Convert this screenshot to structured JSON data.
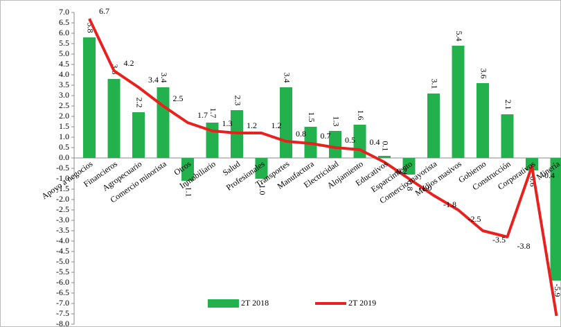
{
  "chart_data": {
    "type": "bar_line",
    "categories": [
      "Apoyo a negocios",
      "Financieros",
      "Agropecuario",
      "Comercio minorista",
      "Otros",
      "Inmobiliario",
      "Salud",
      "Profesionales",
      "Transportes",
      "Manufactura",
      "Electricidad",
      "Alojamiento",
      "Educativos",
      "Esparcimiento",
      "Comercio mayorista",
      "Medios masivos",
      "Gobierno",
      "Construcción",
      "Corporativos",
      "Minería"
    ],
    "series": [
      {
        "name": "2T 2018",
        "type": "bar",
        "color": "#22b14c",
        "values": [
          5.8,
          3.8,
          2.2,
          3.4,
          -1.1,
          1.7,
          2.3,
          -1,
          3.4,
          1.5,
          1.3,
          1.6,
          0.1,
          -0.8,
          3.1,
          5.4,
          3.6,
          2.1,
          -0.6,
          -5.9
        ],
        "value_labels": [
          "5.8",
          "3.8",
          "2.2",
          "3.4",
          "-1.1",
          "1.7",
          "2.3",
          "-1.0",
          "3.4",
          "1.5",
          "1.3",
          "1.6",
          "0.1",
          "-0.8",
          "3.1",
          "5.4",
          "3.6",
          "2.1",
          "-0.6",
          "-5.9"
        ]
      },
      {
        "name": "2T 2019",
        "type": "line",
        "color": "#e8211f",
        "values": [
          6.7,
          4.2,
          3.4,
          2.5,
          1.7,
          1.3,
          1.2,
          1.2,
          0.8,
          0.7,
          0.5,
          0.4,
          -0.2,
          -1,
          -1.8,
          -2.5,
          -3.5,
          -3.8,
          -0.4,
          -7.6
        ],
        "value_labels": [
          "6.7",
          "4.2",
          "3.4",
          "2.5",
          "1.7",
          "1.3",
          "1.2",
          "1.2",
          "0.8",
          "0.7",
          "0.5",
          "0.4",
          "-0.2",
          "-1.0",
          "-1.8",
          "-2.5",
          "-3.5",
          "-3.8",
          "-0.4",
          "-7.6"
        ]
      }
    ],
    "ylim": [
      -8,
      7
    ],
    "yticks": [
      {
        "value": 7,
        "label": "7.0"
      },
      {
        "value": 6.5,
        "label": "6.5"
      },
      {
        "value": 6,
        "label": "6.0"
      },
      {
        "value": 5.5,
        "label": "5.5"
      },
      {
        "value": 5,
        "label": "5.0"
      },
      {
        "value": 4.5,
        "label": "4.5"
      },
      {
        "value": 4,
        "label": "4.0"
      },
      {
        "value": 3.5,
        "label": "3.5"
      },
      {
        "value": 3,
        "label": "3.0"
      },
      {
        "value": 2.5,
        "label": "2.5"
      },
      {
        "value": 2,
        "label": "2.0"
      },
      {
        "value": 1.5,
        "label": "1.5"
      },
      {
        "value": 1,
        "label": "1.0"
      },
      {
        "value": 0.5,
        "label": "0.5"
      },
      {
        "value": 0,
        "label": "0.0"
      },
      {
        "value": -0.5,
        "label": "-0.5"
      },
      {
        "value": -1,
        "label": "-1.0"
      },
      {
        "value": -1.5,
        "label": "-1.5"
      },
      {
        "value": -2,
        "label": "-2.0"
      },
      {
        "value": -2.5,
        "label": "-2.5"
      },
      {
        "value": -3,
        "label": "-3.0"
      },
      {
        "value": -3.5,
        "label": "-3.5"
      },
      {
        "value": -4,
        "label": "-4.0"
      },
      {
        "value": -4.5,
        "label": "-4.5"
      },
      {
        "value": -5,
        "label": "-5.0"
      },
      {
        "value": -5.5,
        "label": "-5.5"
      },
      {
        "value": -6,
        "label": "-6.0"
      },
      {
        "value": -6.5,
        "label": "-6.5"
      },
      {
        "value": -7,
        "label": "-7.0"
      },
      {
        "value": -7.5,
        "label": "-7.5"
      },
      {
        "value": -8,
        "label": "-8.0"
      }
    ],
    "grid": false,
    "legend": "bottom"
  }
}
